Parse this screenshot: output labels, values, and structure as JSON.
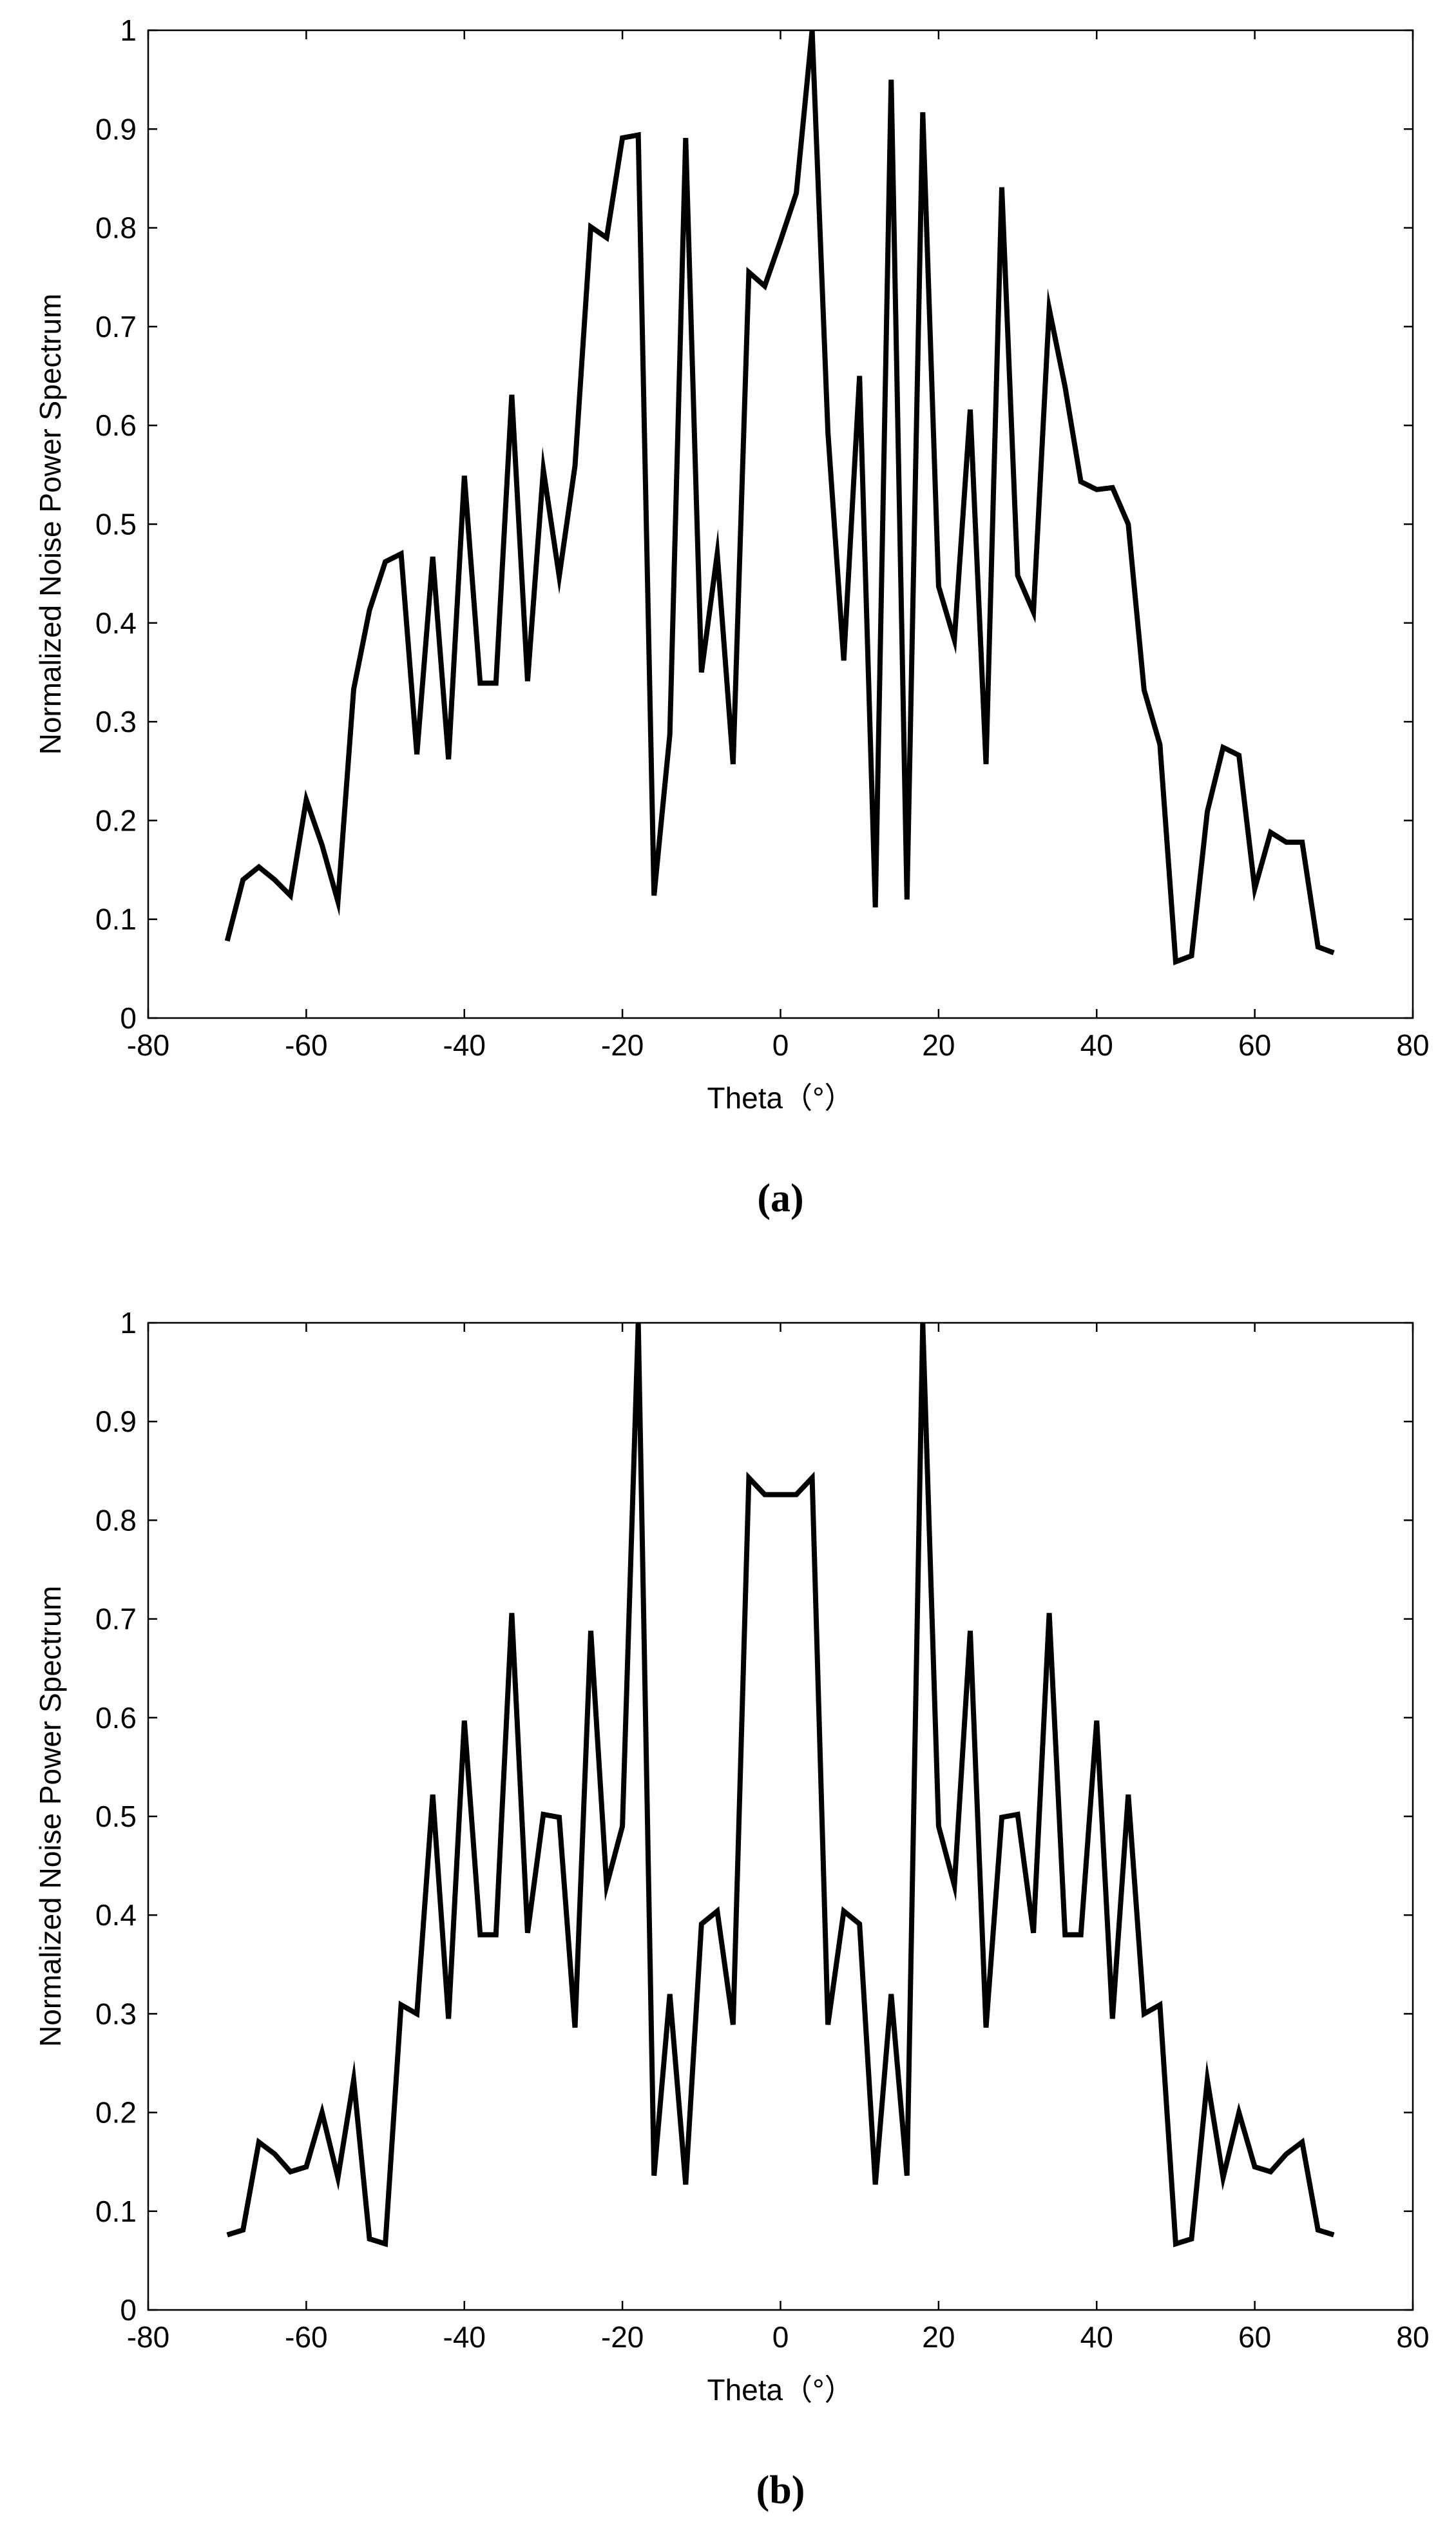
{
  "chart_data": [
    {
      "type": "line",
      "title": "",
      "caption": "(a)",
      "xlabel": "Theta（°）",
      "ylabel": "Normalized Noise Power Spectrum",
      "xlim": [
        -80,
        80
      ],
      "ylim": [
        0,
        1
      ],
      "xticks": [
        -80,
        -60,
        -40,
        -20,
        0,
        20,
        40,
        60,
        80
      ],
      "yticks": [
        0,
        0.1,
        0.2,
        0.3,
        0.4,
        0.5,
        0.6,
        0.7,
        0.8,
        0.9,
        1
      ],
      "ytick_labels": [
        "0",
        "0.1",
        "0.2",
        "0.3",
        "0.4",
        "0.5",
        "0.6",
        "0.7",
        "0.8",
        "0.9",
        "1"
      ],
      "grid": false,
      "line_color": "#000000",
      "series": [
        {
          "name": "(a)",
          "x": [
            -70,
            -68,
            -66,
            -64,
            -62,
            -60,
            -58,
            -56,
            -54,
            -52,
            -50,
            -48,
            -46,
            -44,
            -42,
            -40,
            -38,
            -36,
            -34,
            -32,
            -30,
            -28,
            -26,
            -24,
            -22,
            -20,
            -18,
            -16,
            -14,
            -12,
            -10,
            -8,
            -6,
            -4,
            -2,
            0,
            2,
            4,
            6,
            8,
            10,
            12,
            14,
            16,
            18,
            20,
            22,
            24,
            26,
            28,
            30,
            32,
            34,
            36,
            38,
            40,
            42,
            44,
            46,
            48,
            50,
            52,
            54,
            56,
            58,
            60,
            62,
            64,
            66,
            68,
            70
          ],
          "values": [
            0.078,
            0.14,
            0.153,
            0.14,
            0.124,
            0.221,
            0.175,
            0.118,
            0.333,
            0.413,
            0.462,
            0.47,
            0.267,
            0.467,
            0.262,
            0.549,
            0.339,
            0.339,
            0.631,
            0.341,
            0.555,
            0.447,
            0.559,
            0.801,
            0.79,
            0.891,
            0.894,
            0.124,
            0.287,
            0.891,
            0.35,
            0.47,
            0.257,
            0.755,
            0.741,
            0.787,
            0.835,
            1.0,
            0.593,
            0.362,
            0.65,
            0.112,
            0.95,
            0.12,
            0.917,
            0.437,
            0.383,
            0.616,
            0.257,
            0.841,
            0.448,
            0.411,
            0.718,
            0.639,
            0.543,
            0.535,
            0.537,
            0.5,
            0.332,
            0.277,
            0.057,
            0.063,
            0.209,
            0.274,
            0.266,
            0.131,
            0.188,
            0.178,
            0.178,
            0.072,
            0.066
          ]
        }
      ]
    },
    {
      "type": "line",
      "title": "",
      "caption": "(b)",
      "xlabel": "Theta（°）",
      "ylabel": "Normalized Noise Power Spectrum",
      "xlim": [
        -80,
        80
      ],
      "ylim": [
        0,
        1
      ],
      "xticks": [
        -80,
        -60,
        -40,
        -20,
        0,
        20,
        40,
        60,
        80
      ],
      "yticks": [
        0,
        0.1,
        0.2,
        0.3,
        0.4,
        0.5,
        0.6,
        0.7,
        0.8,
        0.9,
        1
      ],
      "ytick_labels": [
        "0",
        "0.1",
        "0.2",
        "0.3",
        "0.4",
        "0.5",
        "0.6",
        "0.7",
        "0.8",
        "0.9",
        "1"
      ],
      "grid": false,
      "line_color": "#000000",
      "series": [
        {
          "name": "(b)",
          "x": [
            -70,
            -68,
            -66,
            -64,
            -62,
            -60,
            -58,
            -56,
            -54,
            -52,
            -50,
            -48,
            -46,
            -44,
            -42,
            -40,
            -38,
            -36,
            -34,
            -32,
            -30,
            -28,
            -26,
            -24,
            -22,
            -20,
            -18,
            -16,
            -14,
            -12,
            -10,
            -8,
            -6,
            -4,
            -2,
            0,
            2,
            4,
            6,
            8,
            10,
            12,
            14,
            16,
            18,
            20,
            22,
            24,
            26,
            28,
            30,
            32,
            34,
            36,
            38,
            40,
            42,
            44,
            46,
            48,
            50,
            52,
            54,
            56,
            58,
            60,
            62,
            64,
            66,
            68,
            70
          ],
          "values": [
            0.076,
            0.081,
            0.17,
            0.158,
            0.14,
            0.145,
            0.2,
            0.134,
            0.233,
            0.072,
            0.067,
            0.309,
            0.3,
            0.522,
            0.295,
            0.597,
            0.38,
            0.38,
            0.706,
            0.382,
            0.502,
            0.499,
            0.286,
            0.688,
            0.43,
            0.49,
            1.0,
            0.136,
            0.32,
            0.127,
            0.391,
            0.404,
            0.289,
            0.843,
            0.826,
            0.826,
            0.826,
            0.843,
            0.289,
            0.404,
            0.391,
            0.127,
            0.32,
            0.136,
            1.0,
            0.49,
            0.43,
            0.688,
            0.286,
            0.499,
            0.502,
            0.382,
            0.706,
            0.38,
            0.38,
            0.597,
            0.295,
            0.522,
            0.3,
            0.309,
            0.067,
            0.072,
            0.233,
            0.134,
            0.2,
            0.145,
            0.14,
            0.158,
            0.17,
            0.081,
            0.076
          ]
        }
      ]
    }
  ]
}
